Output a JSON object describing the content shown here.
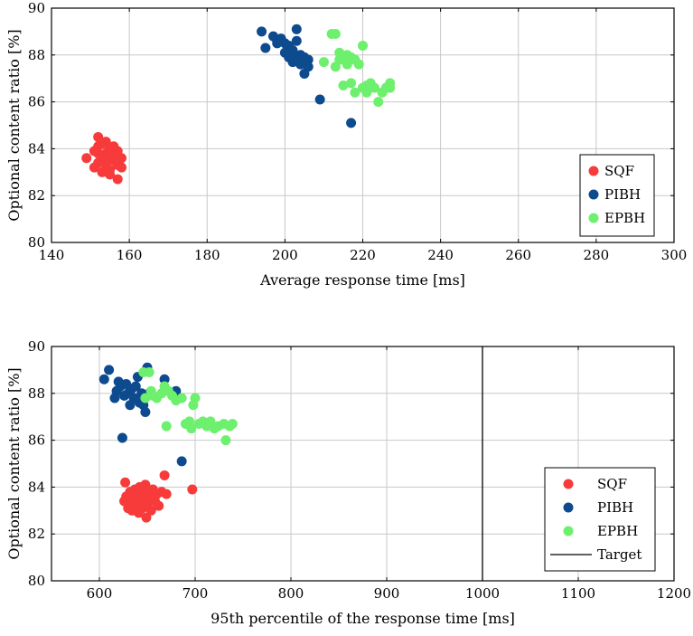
{
  "chart_data": [
    {
      "type": "scatter",
      "xlabel": "Average response time [ms]",
      "ylabel": "Optional content ratio [%]",
      "xlim": [
        140,
        300
      ],
      "ylim": [
        80,
        90
      ],
      "xticks": [
        140,
        160,
        180,
        200,
        220,
        240,
        260,
        280,
        300
      ],
      "yticks": [
        80,
        82,
        84,
        86,
        88,
        90
      ],
      "grid": true,
      "legend_position": "right",
      "series": [
        {
          "name": "SQF",
          "color": "#f73b3b",
          "points": [
            [
              149,
              83.6
            ],
            [
              151,
              83.2
            ],
            [
              151,
              83.9
            ],
            [
              152,
              84.5
            ],
            [
              152,
              84.1
            ],
            [
              152,
              83.4
            ],
            [
              153,
              84.2
            ],
            [
              153,
              83.7
            ],
            [
              153,
              83.0
            ],
            [
              154,
              83.8
            ],
            [
              154,
              83.3
            ],
            [
              154,
              83.5
            ],
            [
              155,
              84.0
            ],
            [
              155,
              83.6
            ],
            [
              155,
              83.1
            ],
            [
              155,
              82.9
            ],
            [
              156,
              84.1
            ],
            [
              156,
              83.5
            ],
            [
              156,
              83.9
            ],
            [
              157,
              83.7
            ],
            [
              157,
              83.3
            ],
            [
              157,
              82.7
            ],
            [
              157,
              83.9
            ],
            [
              158,
              83.2
            ],
            [
              158,
              83.6
            ],
            [
              152,
              83.8
            ],
            [
              153,
              83.5
            ],
            [
              154,
              84.3
            ]
          ]
        },
        {
          "name": "PIBH",
          "color": "#0d4a8e",
          "points": [
            [
              194,
              89.0
            ],
            [
              195,
              88.3
            ],
            [
              197,
              88.8
            ],
            [
              198,
              88.6
            ],
            [
              199,
              88.7
            ],
            [
              200,
              88.5
            ],
            [
              200,
              88.1
            ],
            [
              201,
              88.4
            ],
            [
              201,
              87.9
            ],
            [
              202,
              88.2
            ],
            [
              202,
              87.7
            ],
            [
              203,
              88.6
            ],
            [
              203,
              89.1
            ],
            [
              203,
              87.9
            ],
            [
              204,
              88.0
            ],
            [
              204,
              87.6
            ],
            [
              205,
              87.9
            ],
            [
              205,
              87.2
            ],
            [
              206,
              87.5
            ],
            [
              206,
              87.8
            ],
            [
              209,
              86.1
            ],
            [
              217,
              85.1
            ],
            [
              198,
              88.5
            ],
            [
              201,
              88.0
            ]
          ]
        },
        {
          "name": "EPBH",
          "color": "#6df06d",
          "points": [
            [
              210,
              87.7
            ],
            [
              212,
              88.9
            ],
            [
              213,
              88.9
            ],
            [
              213,
              87.5
            ],
            [
              214,
              88.1
            ],
            [
              214,
              87.8
            ],
            [
              215,
              86.7
            ],
            [
              215,
              87.9
            ],
            [
              216,
              88.0
            ],
            [
              216,
              87.6
            ],
            [
              217,
              87.9
            ],
            [
              217,
              86.8
            ],
            [
              218,
              86.4
            ],
            [
              219,
              87.6
            ],
            [
              220,
              88.4
            ],
            [
              220,
              86.6
            ],
            [
              221,
              86.7
            ],
            [
              221,
              86.4
            ],
            [
              222,
              86.8
            ],
            [
              223,
              86.6
            ],
            [
              224,
              86.0
            ],
            [
              225,
              86.4
            ],
            [
              226,
              86.6
            ],
            [
              227,
              86.8
            ],
            [
              227,
              86.6
            ],
            [
              218,
              87.8
            ]
          ]
        }
      ]
    },
    {
      "type": "scatter",
      "xlabel": "95th percentile of the response time [ms]",
      "ylabel": "Optional content ratio [%]",
      "xlim": [
        550,
        1200
      ],
      "ylim": [
        80,
        90
      ],
      "xticks": [
        600,
        700,
        800,
        900,
        1000,
        1100,
        1200
      ],
      "yticks": [
        80,
        82,
        84,
        86,
        88,
        90
      ],
      "grid": true,
      "legend_position": "bottom-right",
      "target": {
        "name": "Target",
        "x": 1000
      },
      "series": [
        {
          "name": "SQF",
          "color": "#f73b3b",
          "points": [
            [
              626,
              83.4
            ],
            [
              627,
              84.2
            ],
            [
              628,
              83.6
            ],
            [
              630,
              83.1
            ],
            [
              632,
              83.8
            ],
            [
              633,
              83.5
            ],
            [
              634,
              83.0
            ],
            [
              635,
              83.7
            ],
            [
              636,
              83.3
            ],
            [
              637,
              83.9
            ],
            [
              638,
              83.2
            ],
            [
              640,
              83.6
            ],
            [
              641,
              82.9
            ],
            [
              642,
              84.0
            ],
            [
              643,
              83.4
            ],
            [
              644,
              83.7
            ],
            [
              645,
              83.1
            ],
            [
              646,
              83.5
            ],
            [
              647,
              83.8
            ],
            [
              648,
              84.1
            ],
            [
              649,
              82.7
            ],
            [
              650,
              83.3
            ],
            [
              652,
              83.6
            ],
            [
              654,
              83.0
            ],
            [
              656,
              83.9
            ],
            [
              658,
              83.4
            ],
            [
              660,
              83.7
            ],
            [
              662,
              83.2
            ],
            [
              665,
              83.8
            ],
            [
              668,
              84.5
            ],
            [
              670,
              83.7
            ],
            [
              697,
              83.9
            ]
          ]
        },
        {
          "name": "PIBH",
          "color": "#0d4a8e",
          "points": [
            [
              605,
              88.6
            ],
            [
              610,
              89.0
            ],
            [
              616,
              87.8
            ],
            [
              618,
              88.1
            ],
            [
              620,
              88.5
            ],
            [
              622,
              88.3
            ],
            [
              624,
              86.1
            ],
            [
              626,
              87.9
            ],
            [
              628,
              88.4
            ],
            [
              630,
              88.0
            ],
            [
              632,
              87.5
            ],
            [
              634,
              88.2
            ],
            [
              636,
              87.8
            ],
            [
              638,
              88.3
            ],
            [
              640,
              88.7
            ],
            [
              642,
              87.6
            ],
            [
              644,
              88.0
            ],
            [
              646,
              87.5
            ],
            [
              648,
              87.2
            ],
            [
              650,
              89.1
            ],
            [
              652,
              88.0
            ],
            [
              668,
              88.6
            ],
            [
              680,
              88.1
            ],
            [
              686,
              85.1
            ]
          ]
        },
        {
          "name": "EPBH",
          "color": "#6df06d",
          "points": [
            [
              646,
              88.9
            ],
            [
              648,
              87.8
            ],
            [
              652,
              88.9
            ],
            [
              654,
              88.1
            ],
            [
              656,
              87.9
            ],
            [
              660,
              87.8
            ],
            [
              665,
              88.0
            ],
            [
              668,
              88.3
            ],
            [
              670,
              86.6
            ],
            [
              672,
              88.1
            ],
            [
              676,
              87.9
            ],
            [
              680,
              87.7
            ],
            [
              686,
              87.8
            ],
            [
              690,
              86.7
            ],
            [
              694,
              86.8
            ],
            [
              696,
              86.5
            ],
            [
              698,
              87.5
            ],
            [
              700,
              87.8
            ],
            [
              704,
              86.7
            ],
            [
              708,
              86.8
            ],
            [
              712,
              86.6
            ],
            [
              716,
              86.8
            ],
            [
              720,
              86.5
            ],
            [
              724,
              86.6
            ],
            [
              730,
              86.7
            ],
            [
              732,
              86.0
            ],
            [
              736,
              86.6
            ],
            [
              739,
              86.7
            ]
          ]
        }
      ]
    }
  ]
}
